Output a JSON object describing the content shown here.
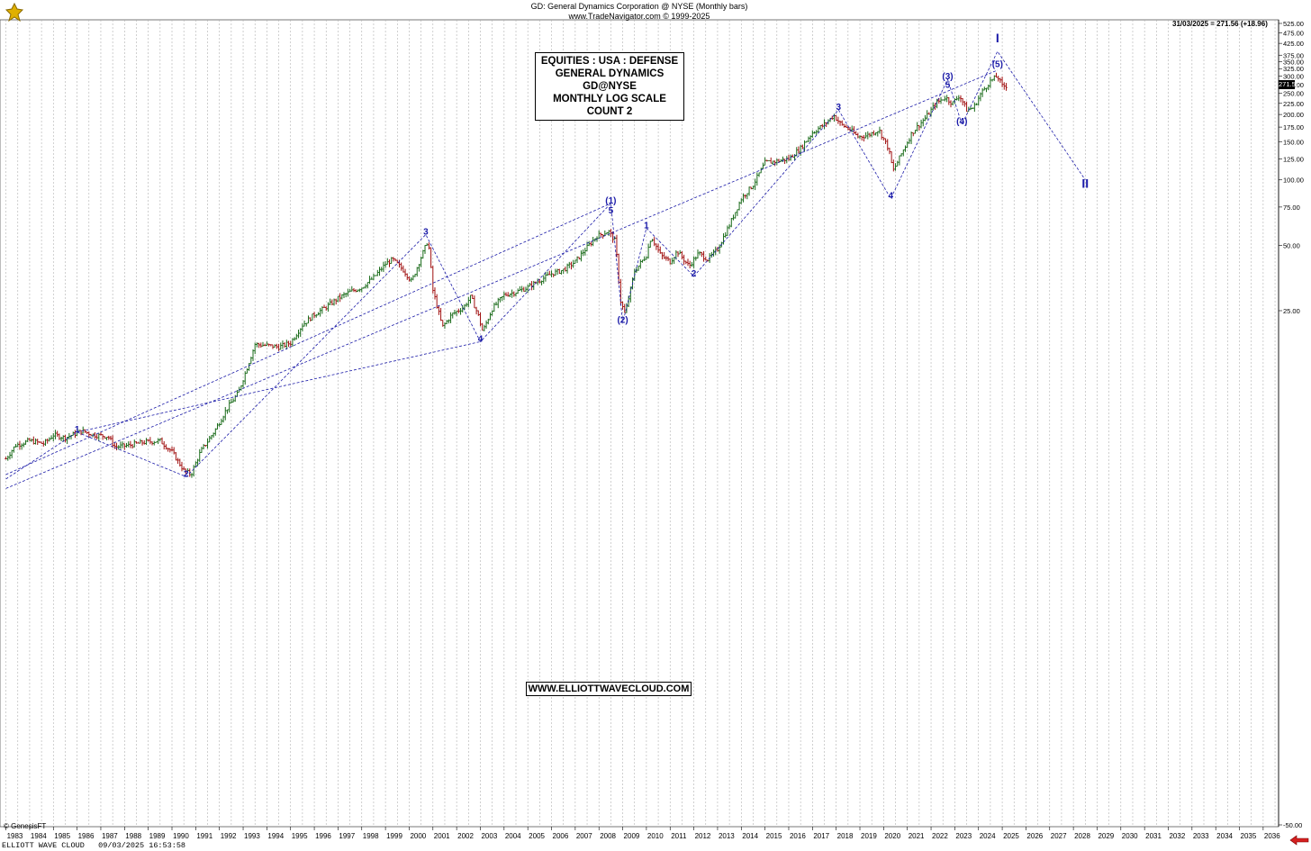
{
  "header": {
    "title": "GD:  General Dynamics Corporation @ NYSE  (Monthly bars)",
    "subtitle": "www.TradeNavigator.com © 1999-2025"
  },
  "info_box": {
    "lines": [
      "EQUITIES : USA : DEFENSE",
      "GENERAL DYNAMICS",
      "GD@NYSE",
      "MONTHLY LOG SCALE",
      "COUNT 2"
    ]
  },
  "website": "WWW.ELLIOTTWAVECLOUD.COM",
  "footer": "ELLIOTT WAVE CLOUD   09/03/2025 16:53:58",
  "genesis": "© GenesisFT",
  "last_price_label": "31/03/2025 = 271.56 (+18.96)",
  "last_price_tag": "271.56",
  "colors": {
    "bars_up": "#1a6b1a",
    "bars_down": "#a01010",
    "waves": "#1a1aa8",
    "grid": "#b0b0b0"
  },
  "chart_data": {
    "type": "ohlc",
    "title": "GD:  General Dynamics Corporation @ NYSE  (Monthly bars)",
    "yscale": "log",
    "ylim": [
      -50,
      525
    ],
    "y_ticks": [
      "525.00",
      "475.00",
      "425.00",
      "375.00",
      "350.00",
      "325.00",
      "300.00",
      "275.00",
      "250.00",
      "225.00",
      "200.00",
      "175.00",
      "150.00",
      "125.00",
      "100.00",
      "75.00",
      "50.00",
      "25.00",
      "-50.00"
    ],
    "x_ticks": [
      "1983",
      "1984",
      "1985",
      "1986",
      "1987",
      "1988",
      "1989",
      "1990",
      "1991",
      "1992",
      "1993",
      "1994",
      "1995",
      "1996",
      "1997",
      "1998",
      "1999",
      "2000",
      "2001",
      "2002",
      "2003",
      "2004",
      "2005",
      "2006",
      "2007",
      "2008",
      "2009",
      "2010",
      "2011",
      "2012",
      "2013",
      "2014",
      "2015",
      "2016",
      "2017",
      "2018",
      "2019",
      "2020",
      "2021",
      "2022",
      "2023",
      "2024",
      "2025",
      "2026",
      "2027",
      "2028",
      "2029",
      "2030",
      "2031",
      "2032",
      "2033",
      "2034",
      "2035",
      "2036"
    ],
    "price_path": [
      [
        1983.0,
        5.2
      ],
      [
        1983.4,
        6.0
      ],
      [
        1984.0,
        6.3
      ],
      [
        1984.6,
        6.1
      ],
      [
        1985.0,
        6.7
      ],
      [
        1985.5,
        6.5
      ],
      [
        1986.2,
        7.0
      ],
      [
        1986.7,
        6.7
      ],
      [
        1987.3,
        6.6
      ],
      [
        1987.6,
        5.9
      ],
      [
        1988.2,
        6.0
      ],
      [
        1988.8,
        6.2
      ],
      [
        1989.5,
        6.3
      ],
      [
        1990.0,
        5.6
      ],
      [
        1990.5,
        4.6
      ],
      [
        1990.8,
        4.4
      ],
      [
        1991.2,
        5.6
      ],
      [
        1991.8,
        7.0
      ],
      [
        1992.3,
        8.8
      ],
      [
        1992.8,
        10.5
      ],
      [
        1993.2,
        14.0
      ],
      [
        1993.5,
        17.5
      ],
      [
        1994.0,
        17.3
      ],
      [
        1994.5,
        17.0
      ],
      [
        1995.0,
        17.8
      ],
      [
        1995.5,
        21.5
      ],
      [
        1996.0,
        24.0
      ],
      [
        1996.5,
        26.0
      ],
      [
        1997.0,
        28.5
      ],
      [
        1997.5,
        30.5
      ],
      [
        1998.0,
        32.0
      ],
      [
        1998.5,
        35.5
      ],
      [
        1999.0,
        41.0
      ],
      [
        1999.3,
        43.0
      ],
      [
        1999.8,
        38.0
      ],
      [
        2000.1,
        34.0
      ],
      [
        2000.5,
        44.0
      ],
      [
        2000.8,
        53.0
      ],
      [
        2001.0,
        31.0
      ],
      [
        2001.4,
        21.0
      ],
      [
        2001.8,
        24.0
      ],
      [
        2002.3,
        26.0
      ],
      [
        2002.6,
        29.0
      ],
      [
        2002.9,
        24.0
      ],
      [
        2003.1,
        20.0
      ],
      [
        2003.5,
        25.5
      ],
      [
        2004.0,
        29.5
      ],
      [
        2004.5,
        30.5
      ],
      [
        2005.0,
        32.0
      ],
      [
        2005.5,
        34.5
      ],
      [
        2006.0,
        37.0
      ],
      [
        2006.5,
        38.5
      ],
      [
        2007.0,
        42.0
      ],
      [
        2007.5,
        49.0
      ],
      [
        2007.9,
        55.0
      ],
      [
        2008.4,
        58.0
      ],
      [
        2008.7,
        52.0
      ],
      [
        2008.9,
        28.0
      ],
      [
        2009.1,
        24.0
      ],
      [
        2009.5,
        38.0
      ],
      [
        2010.0,
        45.0
      ],
      [
        2010.2,
        55.0
      ],
      [
        2010.6,
        45.0
      ],
      [
        2011.0,
        42.0
      ],
      [
        2011.3,
        47.0
      ],
      [
        2011.8,
        40.0
      ],
      [
        2012.2,
        46.0
      ],
      [
        2012.6,
        43.0
      ],
      [
        2013.0,
        48.0
      ],
      [
        2013.5,
        62.0
      ],
      [
        2014.0,
        82.0
      ],
      [
        2014.5,
        95.0
      ],
      [
        2015.0,
        120.0
      ],
      [
        2015.5,
        122.0
      ],
      [
        2016.0,
        125.0
      ],
      [
        2016.5,
        140.0
      ],
      [
        2017.0,
        165.0
      ],
      [
        2017.5,
        180.0
      ],
      [
        2017.9,
        198.0
      ],
      [
        2018.2,
        180.0
      ],
      [
        2018.6,
        170.0
      ],
      [
        2018.9,
        158.0
      ],
      [
        2019.3,
        160.0
      ],
      [
        2019.8,
        170.0
      ],
      [
        2020.2,
        140.0
      ],
      [
        2020.4,
        110.0
      ],
      [
        2020.8,
        135.0
      ],
      [
        2021.2,
        165.0
      ],
      [
        2021.8,
        195.0
      ],
      [
        2022.2,
        225.0
      ],
      [
        2022.6,
        240.0
      ],
      [
        2022.9,
        225.0
      ],
      [
        2023.2,
        245.0
      ],
      [
        2023.5,
        210.0
      ],
      [
        2023.8,
        215.0
      ],
      [
        2024.1,
        250.0
      ],
      [
        2024.5,
        285.0
      ],
      [
        2024.8,
        300.0
      ],
      [
        2025.0,
        270.0
      ],
      [
        2025.2,
        271.56
      ]
    ],
    "wave_labels": [
      {
        "text": "1",
        "x": 1986.0,
        "y": 6.9
      },
      {
        "text": "2",
        "x": 1990.6,
        "y": 4.3
      },
      {
        "text": "3",
        "x": 2000.7,
        "y": 56.0
      },
      {
        "text": "4",
        "x": 2003.0,
        "y": 18.0
      },
      {
        "text": "(1)",
        "x": 2008.5,
        "y": 78.0
      },
      {
        "text": "5",
        "x": 2008.5,
        "y": 70.0
      },
      {
        "text": "(2)",
        "x": 2009.0,
        "y": 22.0
      },
      {
        "text": "1",
        "x": 2010.0,
        "y": 60.0
      },
      {
        "text": "2",
        "x": 2012.0,
        "y": 36.0
      },
      {
        "text": "3",
        "x": 2018.1,
        "y": 210.0
      },
      {
        "text": "4",
        "x": 2020.3,
        "y": 82.0
      },
      {
        "text": "(3)",
        "x": 2022.7,
        "y": 290.0
      },
      {
        "text": "5",
        "x": 2022.7,
        "y": 265.0
      },
      {
        "text": "(4)",
        "x": 2023.3,
        "y": 180.0
      },
      {
        "text": "(5)",
        "x": 2024.8,
        "y": 330.0
      },
      {
        "text": "I",
        "x": 2024.8,
        "y": 430.0
      },
      {
        "text": "II",
        "x": 2028.5,
        "y": 92.0
      }
    ],
    "wave_lines": [
      [
        [
          1983.0,
          4.2
        ],
        [
          1986.0,
          6.9
        ],
        [
          1990.6,
          4.3
        ],
        [
          2000.7,
          56.0
        ],
        [
          2003.0,
          18.0
        ],
        [
          2008.5,
          78.0
        ],
        [
          2009.0,
          22.0
        ],
        [
          2010.0,
          60.0
        ],
        [
          2012.0,
          36.0
        ],
        [
          2018.1,
          210.0
        ],
        [
          2020.3,
          82.0
        ],
        [
          2022.7,
          290.0
        ],
        [
          2023.3,
          180.0
        ],
        [
          2024.8,
          390.0
        ],
        [
          2028.5,
          100.0
        ]
      ]
    ],
    "channels": [
      [
        [
          1983.0,
          4.4
        ],
        [
          2008.5,
          78.0
        ]
      ],
      [
        [
          1983.0,
          3.8
        ],
        [
          2024.8,
          320.0
        ]
      ],
      [
        [
          1986.0,
          6.9
        ],
        [
          2003.0,
          18.0
        ]
      ]
    ]
  }
}
